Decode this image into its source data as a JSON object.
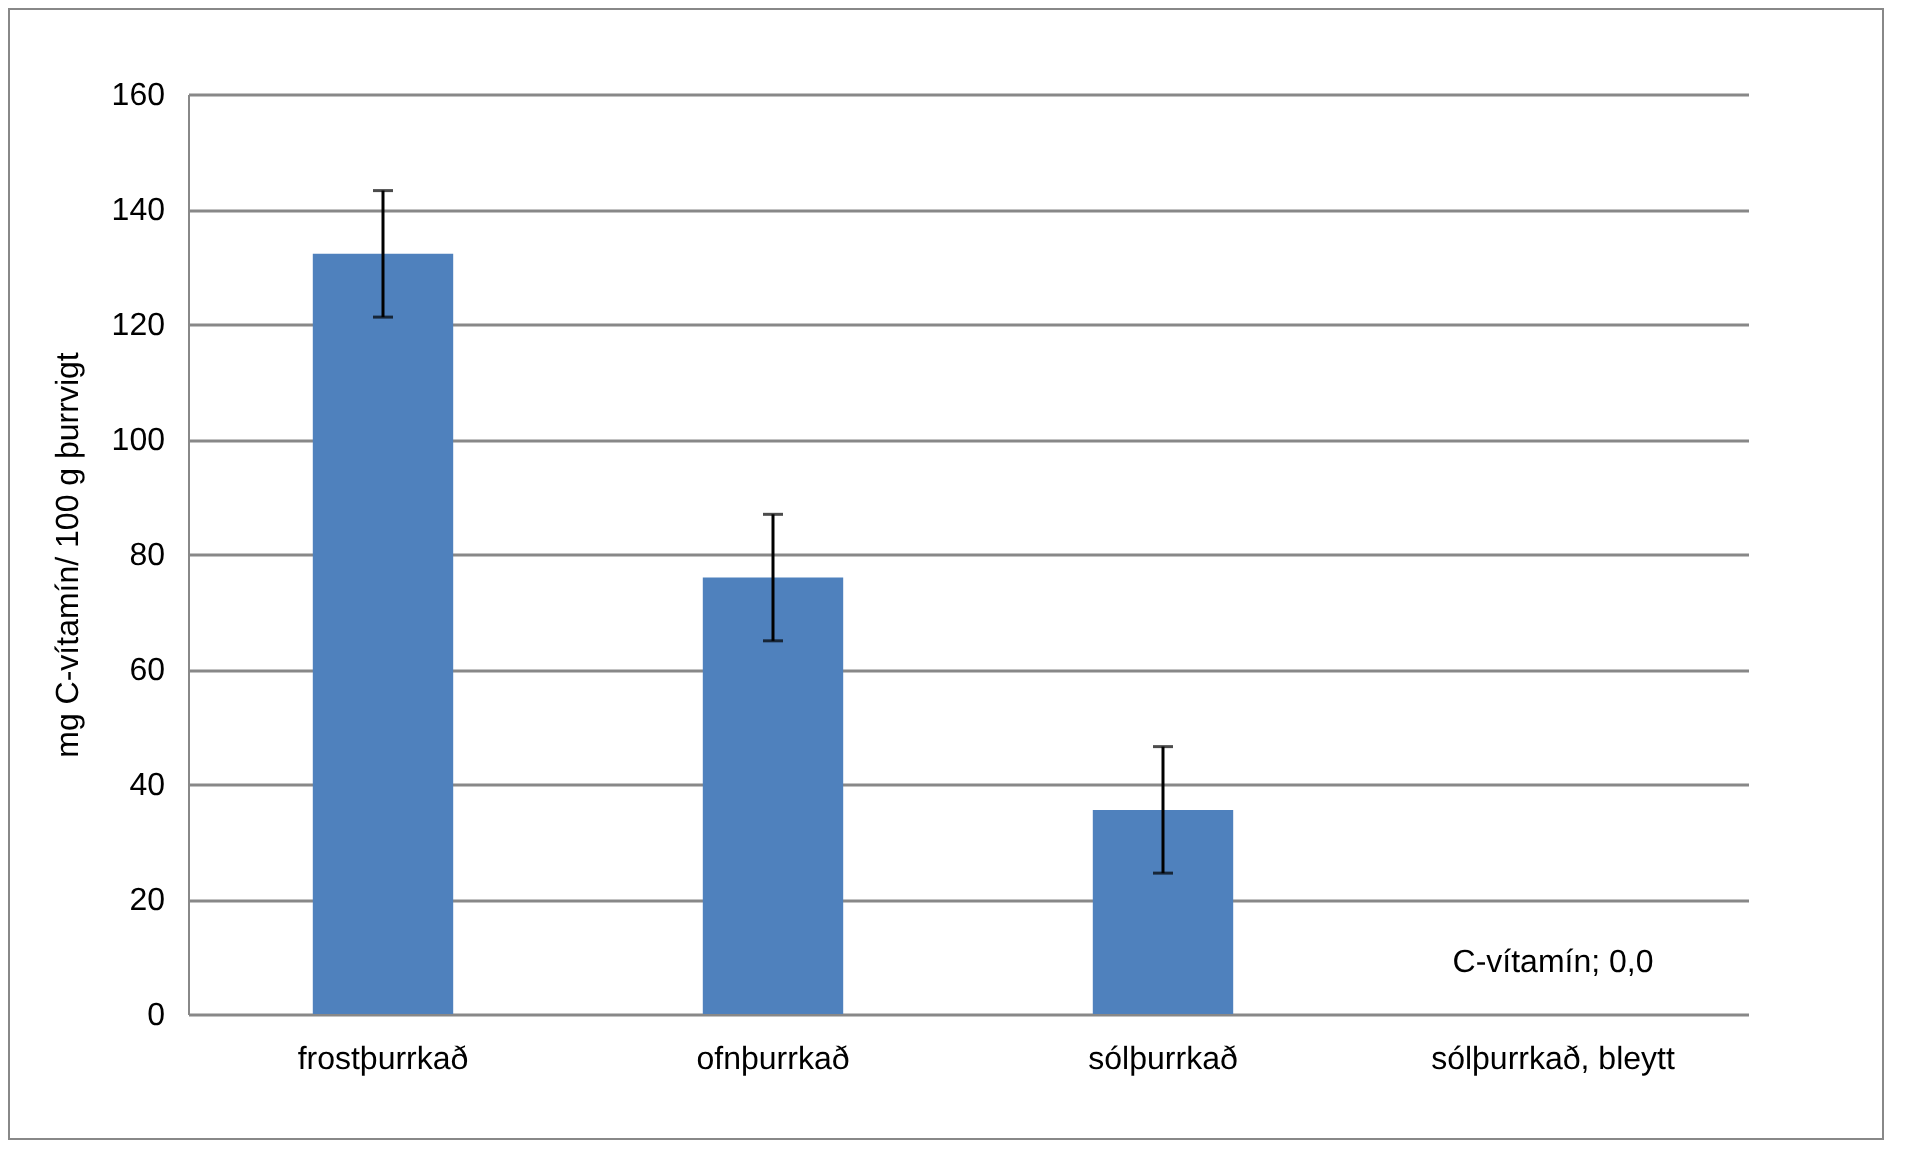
{
  "chart_data": {
    "type": "bar",
    "ylabel": "mg C-vítamín/ 100 g þurrvigt",
    "categories": [
      "frostþurrkað",
      "ofnþurrkað",
      "sólþurrkað",
      "sólþurrkað, bleytt"
    ],
    "values": [
      132.2,
      75.9,
      35.5,
      0
    ],
    "errors": [
      11,
      11,
      11,
      null
    ],
    "value_labels": [
      null,
      null,
      null,
      "C-vítamín; 0,0"
    ],
    "color": "#4f81bd",
    "ylim": [
      0,
      160
    ],
    "yticks": [
      0,
      20,
      40,
      60,
      80,
      100,
      120,
      140,
      160
    ],
    "grid": "y"
  }
}
